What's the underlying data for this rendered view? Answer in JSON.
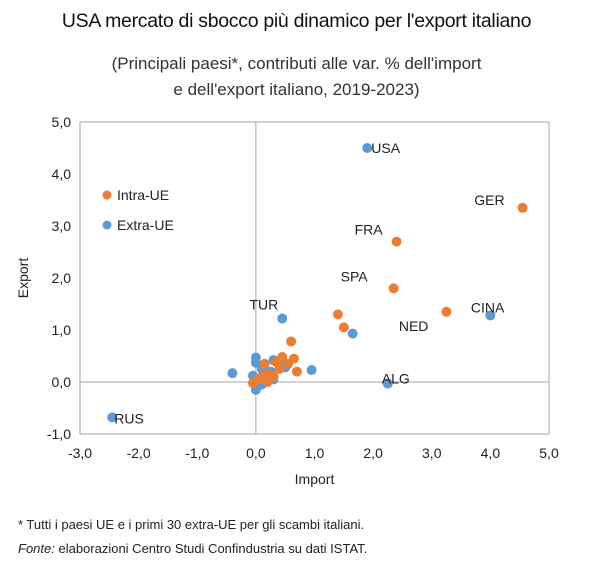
{
  "title": "USA mercato di sbocco più dinamico per l'export italiano",
  "subtitle_line1": "(Principali paesi*, contributi alle var. % dell'import",
  "subtitle_line2": "e dell'export italiano, 2019-2023)",
  "footnote_line1": "* Tutti i paesi UE e i primi 30 extra-UE per gli scambi italiani.",
  "footnote_source_label": "Fonte:",
  "footnote_source_text": " elaborazioni Centro Studi Confindustria su dati ISTAT.",
  "colors": {
    "intra": "#ED7D31",
    "extra": "#5B9BD5",
    "axis": "#808080",
    "border": "#A6A6A6",
    "text": "#222222"
  },
  "chart_data": {
    "type": "scatter",
    "xlabel": "Import",
    "ylabel": "Export",
    "xlim": [
      -3.0,
      5.0
    ],
    "ylim": [
      -1.0,
      5.0
    ],
    "xticks": [
      "-3,0",
      "-2,0",
      "-1,0",
      "0,0",
      "1,0",
      "2,0",
      "3,0",
      "4,0",
      "5,0"
    ],
    "yticks": [
      "-1,0",
      "0,0",
      "1,0",
      "2,0",
      "3,0",
      "4,0",
      "5,0"
    ],
    "legend_position": "upper-left",
    "series": [
      {
        "name": "Intra-UE",
        "color": "#ED7D31",
        "points": [
          {
            "x": 4.55,
            "y": 3.35,
            "label": "GER"
          },
          {
            "x": 2.4,
            "y": 2.7,
            "label": "FRA"
          },
          {
            "x": 2.35,
            "y": 1.8,
            "label": "SPA"
          },
          {
            "x": 3.25,
            "y": 1.35,
            "label": "NED"
          },
          {
            "x": 1.4,
            "y": 1.3
          },
          {
            "x": 1.5,
            "y": 1.05
          },
          {
            "x": 0.6,
            "y": 0.78
          },
          {
            "x": 0.45,
            "y": 0.48
          },
          {
            "x": 0.65,
            "y": 0.45
          },
          {
            "x": 0.55,
            "y": 0.35
          },
          {
            "x": 0.35,
            "y": 0.38
          },
          {
            "x": 0.15,
            "y": 0.35
          },
          {
            "x": 0.7,
            "y": 0.2
          },
          {
            "x": 0.4,
            "y": 0.25
          },
          {
            "x": 0.2,
            "y": 0.15
          },
          {
            "x": 0.3,
            "y": 0.1
          },
          {
            "x": 0.1,
            "y": 0.1
          },
          {
            "x": 0.05,
            "y": 0.05
          },
          {
            "x": 0.2,
            "y": 0.0
          },
          {
            "x": -0.05,
            "y": -0.02
          }
        ]
      },
      {
        "name": "Extra-UE",
        "color": "#5B9BD5",
        "points": [
          {
            "x": 1.9,
            "y": 4.5,
            "label": "USA"
          },
          {
            "x": 4.0,
            "y": 1.28,
            "label": "CINA"
          },
          {
            "x": 0.45,
            "y": 1.22,
            "label": "TUR"
          },
          {
            "x": 2.25,
            "y": -0.03,
            "label": "ALG"
          },
          {
            "x": -2.45,
            "y": -0.68,
            "label": "RUS"
          },
          {
            "x": 1.65,
            "y": 0.93
          },
          {
            "x": 0.95,
            "y": 0.23
          },
          {
            "x": -0.4,
            "y": 0.17
          },
          {
            "x": 0.0,
            "y": 0.47
          },
          {
            "x": 0.0,
            "y": 0.37
          },
          {
            "x": 0.3,
            "y": 0.42
          },
          {
            "x": 0.45,
            "y": 0.35
          },
          {
            "x": 0.5,
            "y": 0.28
          },
          {
            "x": 0.1,
            "y": 0.25
          },
          {
            "x": 0.25,
            "y": 0.2
          },
          {
            "x": 0.2,
            "y": 0.1
          },
          {
            "x": 0.3,
            "y": 0.05
          },
          {
            "x": 0.15,
            "y": 0.02
          },
          {
            "x": -0.05,
            "y": 0.12
          },
          {
            "x": 0.05,
            "y": 0.0
          },
          {
            "x": 0.1,
            "y": -0.05
          },
          {
            "x": 0.0,
            "y": -0.15
          }
        ]
      }
    ]
  }
}
